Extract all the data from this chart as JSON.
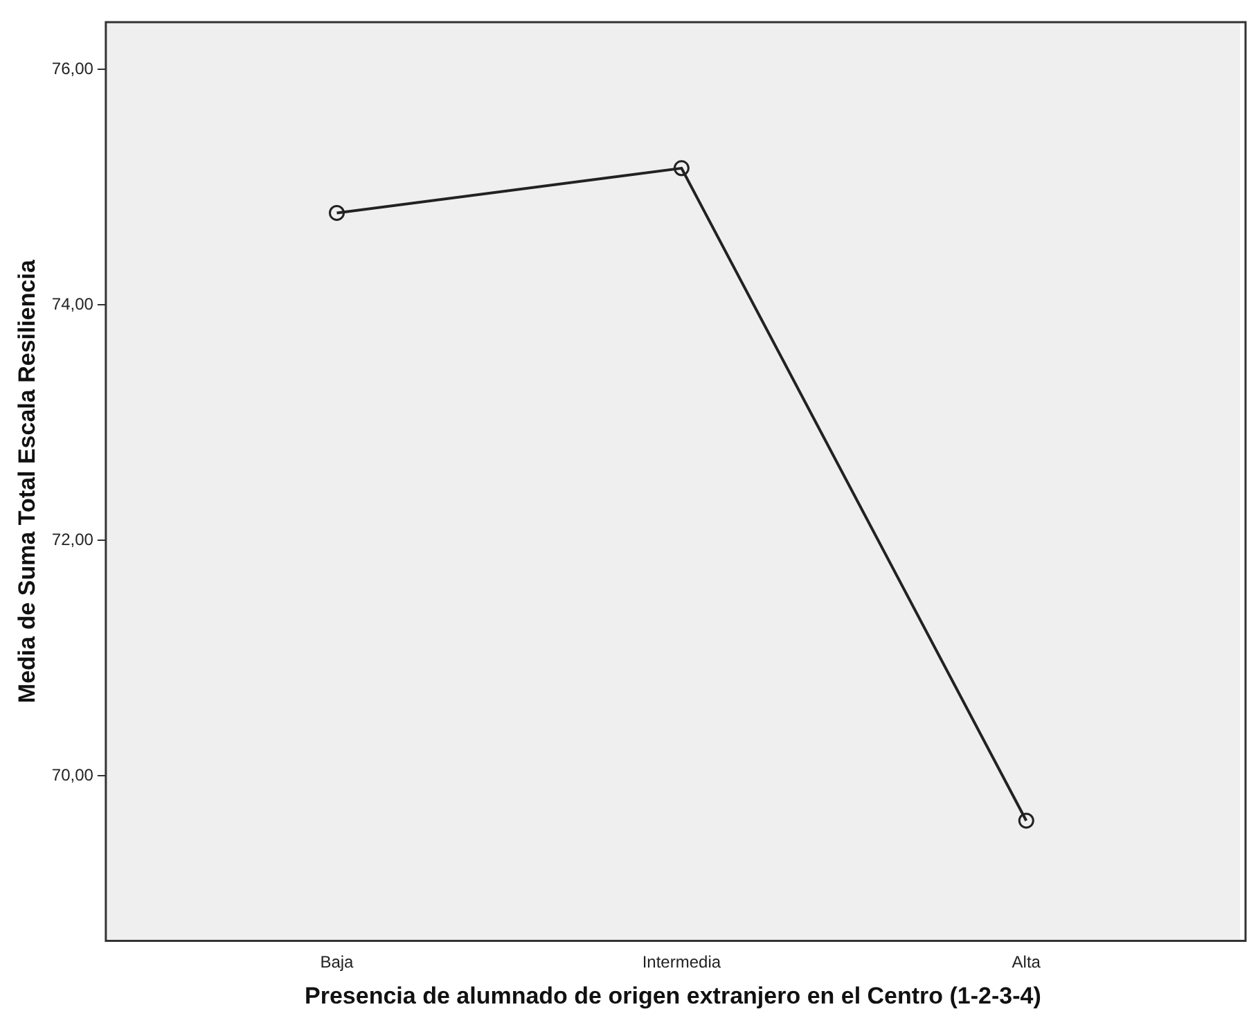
{
  "chart_data": {
    "type": "line",
    "xlabel": "Presencia de alumnado de origen extranjero en el Centro (1-2-3-4)",
    "ylabel": "Media de Suma Total Escala Resiliencia",
    "categories": [
      "Baja",
      "Intermedia",
      "Alta"
    ],
    "series": [
      {
        "color": "#222222",
        "values": [
          74.78,
          75.16,
          69.62
        ]
      }
    ],
    "ylim": [
      68.6,
      76.4
    ],
    "yticks": [
      {
        "value": 70,
        "label": "70,00"
      },
      {
        "value": 72,
        "label": "72,00"
      },
      {
        "value": 74,
        "label": "74,00"
      },
      {
        "value": 76,
        "label": "76,00"
      }
    ],
    "grid": false,
    "legend": false,
    "marker": "circle",
    "line_style": "solid"
  }
}
